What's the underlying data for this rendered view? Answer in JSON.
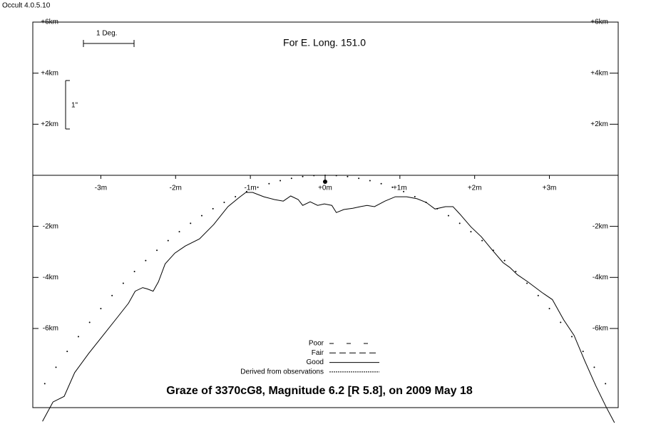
{
  "app_title": "Occult 4.0.5.10",
  "chart_data": {
    "type": "line",
    "title": "Graze of  3370cG8,  Magnitude 6.2 [R 5.8],  on 2009 May 18",
    "subtitle": "For E. Long. 151.0",
    "scale_bar_x": "1 Deg.",
    "scale_bar_y": "1\"",
    "xlim": [
      -3.91,
      3.92
    ],
    "ylim": [
      -9.1,
      6.0
    ],
    "xticks": [
      {
        "value": -3,
        "label": "-3m"
      },
      {
        "value": -2,
        "label": "-2m"
      },
      {
        "value": -1,
        "label": "-1m"
      },
      {
        "value": 0,
        "label": "+0m"
      },
      {
        "value": 1,
        "label": "+1m"
      },
      {
        "value": 2,
        "label": "+2m"
      },
      {
        "value": 3,
        "label": "+3m"
      }
    ],
    "yticks": [
      {
        "value": 6,
        "label": "+6km"
      },
      {
        "value": 4,
        "label": "+4km"
      },
      {
        "value": 2,
        "label": "+2km"
      },
      {
        "value": -2,
        "label": "-2km"
      },
      {
        "value": -4,
        "label": "-4km"
      },
      {
        "value": -6,
        "label": "-6km"
      }
    ],
    "legend": [
      "Poor",
      "Fair",
      "Good",
      "Derived from observations"
    ],
    "series": [
      {
        "style": "solid",
        "color": "#000000",
        "x": [
          -3.78,
          -3.64,
          -3.49,
          -3.35,
          -3.16,
          -2.97,
          -2.78,
          -2.63,
          -2.54,
          -2.44,
          -2.38,
          -2.3,
          -2.23,
          -2.14,
          -2.01,
          -1.87,
          -1.68,
          -1.49,
          -1.3,
          -1.15,
          -1.06,
          -0.97,
          -0.82,
          -0.68,
          -0.56,
          -0.46,
          -0.36,
          -0.3,
          -0.2,
          -0.1,
          -0.01,
          0.09,
          0.15,
          0.25,
          0.37,
          0.47,
          0.56,
          0.66,
          0.8,
          0.94,
          1.09,
          1.23,
          1.35,
          1.47,
          1.61,
          1.71,
          1.8,
          1.95,
          2.09,
          2.23,
          2.38,
          2.47,
          2.57,
          2.71,
          2.9,
          3.04,
          3.19,
          3.33,
          3.47,
          3.62,
          3.76,
          3.87
        ],
        "values": [
          -9.64,
          -8.88,
          -8.66,
          -7.73,
          -6.97,
          -6.27,
          -5.57,
          -5.01,
          -4.54,
          -4.4,
          -4.45,
          -4.54,
          -4.17,
          -3.47,
          -3.05,
          -2.77,
          -2.49,
          -1.93,
          -1.23,
          -0.87,
          -0.67,
          -0.67,
          -0.84,
          -0.95,
          -1.01,
          -0.81,
          -0.95,
          -1.18,
          -1.04,
          -1.18,
          -1.12,
          -1.18,
          -1.46,
          -1.34,
          -1.29,
          -1.23,
          -1.18,
          -1.23,
          -1.01,
          -0.84,
          -0.84,
          -0.92,
          -1.06,
          -1.32,
          -1.23,
          -1.23,
          -1.51,
          -2.02,
          -2.41,
          -2.91,
          -3.42,
          -3.61,
          -3.89,
          -4.17,
          -4.59,
          -4.87,
          -5.66,
          -6.27,
          -7.25,
          -8.24,
          -9.08,
          -9.69
        ]
      },
      {
        "style": "dots",
        "color": "#000000",
        "x": [
          -3.75,
          -3.6,
          -3.45,
          -3.3,
          -3.15,
          -3.0,
          -2.85,
          -2.7,
          -2.55,
          -2.4,
          -2.25,
          -2.1,
          -1.95,
          -1.8,
          -1.65,
          -1.5,
          -1.35,
          -1.2,
          -1.05,
          -0.9,
          -0.75,
          -0.6,
          -0.45,
          -0.3,
          -0.15,
          0,
          0.15,
          0.3,
          0.45,
          0.6,
          0.75,
          0.9,
          1.05,
          1.2,
          1.35,
          1.5,
          1.65,
          1.8,
          1.95,
          2.1,
          2.25,
          2.4,
          2.55,
          2.7,
          2.85,
          3.0,
          3.15,
          3.3,
          3.45,
          3.6,
          3.75
        ],
        "values": [
          -8.16,
          -7.52,
          -6.9,
          -6.32,
          -5.76,
          -5.22,
          -4.71,
          -4.23,
          -3.77,
          -3.34,
          -2.94,
          -2.56,
          -2.21,
          -1.88,
          -1.58,
          -1.31,
          -1.06,
          -0.84,
          -0.64,
          -0.47,
          -0.33,
          -0.21,
          -0.12,
          -0.05,
          -0.01,
          0,
          -0.01,
          -0.05,
          -0.12,
          -0.21,
          -0.33,
          -0.47,
          -0.64,
          -0.84,
          -1.06,
          -1.31,
          -1.58,
          -1.88,
          -2.21,
          -2.56,
          -2.94,
          -3.34,
          -3.77,
          -4.23,
          -4.71,
          -5.22,
          -5.76,
          -6.32,
          -6.9,
          -7.52,
          -8.16
        ]
      }
    ]
  }
}
